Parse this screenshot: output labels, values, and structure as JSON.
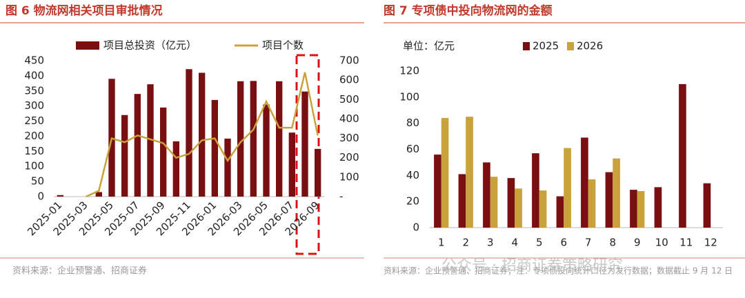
{
  "chart_data": [
    {
      "type": "combo",
      "title": "图 6 物流网相关项目审批情况",
      "categories": [
        "2025-01",
        null,
        "2025-03",
        null,
        "2025-05",
        null,
        "2025-07",
        null,
        "2025-09",
        null,
        "2025-11",
        null,
        "2026-01",
        null,
        "2026-03",
        null,
        "2026-05",
        null,
        "2026-07",
        null,
        "2026-09"
      ],
      "series": [
        {
          "name": "项目总投资（亿元）",
          "type": "bar",
          "color": "#7a0f12",
          "values": [
            5,
            null,
            null,
            15,
            390,
            270,
            340,
            372,
            295,
            183,
            422,
            410,
            320,
            192,
            382,
            383,
            305,
            382,
            212,
            348,
            158
          ]
        },
        {
          "name": "项目个数",
          "type": "line",
          "axis": "y2",
          "color": "#c9a23c",
          "values": [
            null,
            null,
            0,
            30,
            300,
            280,
            315,
            295,
            275,
            200,
            220,
            290,
            300,
            185,
            280,
            345,
            490,
            355,
            355,
            640,
            315
          ]
        }
      ],
      "ylim": [
        0,
        450
      ],
      "yticks": [
        0,
        50,
        100,
        150,
        200,
        250,
        300,
        350,
        400,
        450
      ],
      "y2lim": [
        0,
        700
      ],
      "y2ticks": [
        {
          "value": 0,
          "label": "-"
        },
        100,
        200,
        300,
        400,
        500,
        600,
        700
      ],
      "grid": false,
      "source": "资料来源：企业预警通、招商证券"
    },
    {
      "type": "bar",
      "title": "图 7 专项债中投向物流网的金额",
      "unit": "单位：亿元",
      "categories": [
        "1",
        "2",
        "3",
        "4",
        "5",
        "6",
        "7",
        "8",
        "9",
        "10",
        "11",
        "12"
      ],
      "series": [
        {
          "name": "2025",
          "color": "#7a0f12",
          "values": [
            56,
            41,
            50,
            38,
            57,
            24,
            69,
            42.5,
            29,
            31,
            110,
            34
          ]
        },
        {
          "name": "2026",
          "color": "#c9a23c",
          "values": [
            84,
            85,
            39,
            30,
            28.5,
            61,
            37,
            53,
            28,
            null,
            null,
            null
          ]
        }
      ],
      "ylim": [
        0,
        120
      ],
      "yticks": [
        0,
        20,
        40,
        60,
        80,
        100,
        120
      ],
      "grid": false,
      "source": "资料来源：企业预警通、招商证券；注：专项债投向统计口径为发行数据；数据截止 9 月 12 日"
    }
  ],
  "watermark": "公众号 · 招商证券策略研究"
}
